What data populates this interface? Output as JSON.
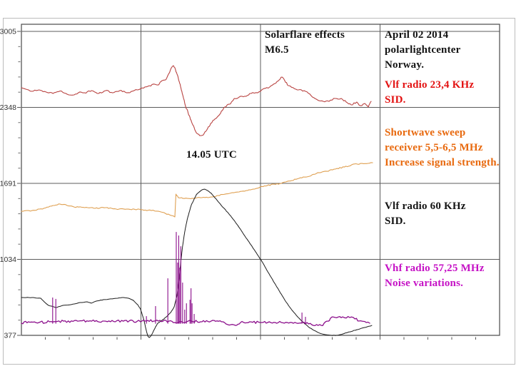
{
  "frame": {
    "border_color": "#bcbcbc"
  },
  "annotations": {
    "solarflare": {
      "line1": "Solarflare effects",
      "line2": "M6.5",
      "color": "#141414"
    },
    "date_location": {
      "line1": "April 02 2014",
      "line2": "polarlightcenter",
      "line3": "Norway.",
      "color": "#141414"
    },
    "utc_time": {
      "text": "14.05 UTC",
      "color": "#141414"
    }
  },
  "legend": {
    "vlf234": {
      "line1": "Vlf radio 23,4 KHz",
      "line2": "SID.",
      "color": "#e31212"
    },
    "shortwave": {
      "line1": "Shortwave sweep",
      "line2": "receiver 5,5-6,5 MHz",
      "line3": "Increase signal strength.",
      "color": "#e8690e"
    },
    "vlf60": {
      "line1": "Vlf radio 60 KHz",
      "line2": "SID.",
      "color": "#141414"
    },
    "vhf": {
      "line1": "Vhf radio 57,25 MHz",
      "line2": "Noise variations.",
      "color": "#c511c5"
    }
  },
  "chart_data": {
    "type": "line",
    "title": "Solarflare effects M6.5 — April 02 2014, polarlightcenter Norway",
    "event_time": "14.05 UTC",
    "grid": {
      "color": "#5c5c5c",
      "box_color": "#4a4a4a",
      "vertical_major_fractions": [
        0.25,
        0.5,
        0.75
      ],
      "x_minor_step_fraction": 0.05
    },
    "y_axis": {
      "range": [
        377,
        3005
      ],
      "ticks": [
        3005,
        2348,
        1691,
        1034,
        377
      ],
      "minor_divisions": 5,
      "label_color": "#333333"
    },
    "x_axis": {
      "tick_labels": [],
      "note": "time of day, unlabeled minor ticks every 5% of span"
    },
    "series": [
      {
        "id": "vlf234",
        "name": "Vlf radio 23,4 KHz SID",
        "color": "#b94442",
        "width": 1.1,
        "noise": 1.1,
        "seed": 11,
        "points": [
          [
            0,
            2518
          ],
          [
            2,
            2500
          ],
          [
            3,
            2487
          ],
          [
            5,
            2499
          ],
          [
            7,
            2481
          ],
          [
            9,
            2468
          ],
          [
            11,
            2490
          ],
          [
            13,
            2462
          ],
          [
            15,
            2456
          ],
          [
            17,
            2480
          ],
          [
            18,
            2474
          ],
          [
            20,
            2493
          ],
          [
            22,
            2468
          ],
          [
            24,
            2493
          ],
          [
            26,
            2474
          ],
          [
            28,
            2493
          ],
          [
            30,
            2474
          ],
          [
            33,
            2499
          ],
          [
            34,
            2511
          ],
          [
            36,
            2530
          ],
          [
            38,
            2548
          ],
          [
            39,
            2542
          ],
          [
            40,
            2579
          ],
          [
            41,
            2585
          ],
          [
            42,
            2641
          ],
          [
            42.7,
            2690
          ],
          [
            43.3,
            2709
          ],
          [
            43.9,
            2672
          ],
          [
            44.7,
            2598
          ],
          [
            45.7,
            2487
          ],
          [
            46.7,
            2363
          ],
          [
            47.8,
            2277
          ],
          [
            48.8,
            2197
          ],
          [
            49.8,
            2129
          ],
          [
            50.8,
            2104
          ],
          [
            51.8,
            2110
          ],
          [
            52.8,
            2153
          ],
          [
            53.9,
            2209
          ],
          [
            54.9,
            2240
          ],
          [
            56.5,
            2289
          ],
          [
            57.9,
            2351
          ],
          [
            59.3,
            2376
          ],
          [
            60.6,
            2425
          ],
          [
            62,
            2437
          ],
          [
            64,
            2444
          ],
          [
            65.4,
            2468
          ],
          [
            67.3,
            2474
          ],
          [
            69.1,
            2511
          ],
          [
            70.7,
            2524
          ],
          [
            72.2,
            2554
          ],
          [
            73.4,
            2585
          ],
          [
            74.2,
            2610
          ],
          [
            75,
            2579
          ],
          [
            76,
            2536
          ],
          [
            77.4,
            2518
          ],
          [
            78.9,
            2499
          ],
          [
            80.9,
            2487
          ],
          [
            82.5,
            2450
          ],
          [
            84.3,
            2413
          ],
          [
            86,
            2400
          ],
          [
            87.6,
            2400
          ],
          [
            89.4,
            2425
          ],
          [
            91.1,
            2425
          ],
          [
            92.5,
            2394
          ],
          [
            93.9,
            2370
          ],
          [
            95.5,
            2394
          ],
          [
            96.5,
            2363
          ],
          [
            97.8,
            2382
          ],
          [
            98.8,
            2351
          ],
          [
            99.6,
            2400
          ]
        ]
      },
      {
        "id": "shortwave",
        "name": "Shortwave sweep receiver 5,5-6,5 MHz",
        "color": "#dfa052",
        "width": 1.1,
        "noise": 0.8,
        "seed": 22,
        "points": [
          [
            0,
            1450
          ],
          [
            3,
            1456
          ],
          [
            6,
            1469
          ],
          [
            9,
            1500
          ],
          [
            11,
            1512
          ],
          [
            13,
            1500
          ],
          [
            15,
            1487
          ],
          [
            18,
            1481
          ],
          [
            21,
            1475
          ],
          [
            24,
            1481
          ],
          [
            27,
            1469
          ],
          [
            30,
            1469
          ],
          [
            34,
            1463
          ],
          [
            37,
            1456
          ],
          [
            39,
            1450
          ],
          [
            41,
            1431
          ],
          [
            42.7,
            1413
          ],
          [
            43.7,
            1401
          ],
          [
            44,
            1598
          ],
          [
            44.7,
            1567
          ],
          [
            46,
            1561
          ],
          [
            49,
            1561
          ],
          [
            51,
            1567
          ],
          [
            54,
            1573
          ],
          [
            56,
            1586
          ],
          [
            58,
            1598
          ],
          [
            60,
            1611
          ],
          [
            62,
            1617
          ],
          [
            64,
            1629
          ],
          [
            66,
            1641
          ],
          [
            68,
            1660
          ],
          [
            70,
            1672
          ],
          [
            72,
            1684
          ],
          [
            74,
            1691
          ],
          [
            77,
            1715
          ],
          [
            79,
            1734
          ],
          [
            82,
            1752
          ],
          [
            84,
            1777
          ],
          [
            87,
            1795
          ],
          [
            89,
            1814
          ],
          [
            92,
            1832
          ],
          [
            94,
            1851
          ],
          [
            97,
            1863
          ],
          [
            100,
            1869
          ]
        ]
      },
      {
        "id": "vlf60",
        "name": "Vlf radio 60 KHz SID",
        "color": "#1c1c1c",
        "width": 1.0,
        "noise": 0.3,
        "seed": 33,
        "points": [
          [
            0,
            704
          ],
          [
            3,
            704
          ],
          [
            5.5,
            698
          ],
          [
            6.5,
            667
          ],
          [
            7.7,
            636
          ],
          [
            9.8,
            617
          ],
          [
            11.8,
            636
          ],
          [
            14.2,
            643
          ],
          [
            16.7,
            661
          ],
          [
            18.7,
            667
          ],
          [
            19.9,
            655
          ],
          [
            21.3,
            673
          ],
          [
            23.4,
            686
          ],
          [
            25.4,
            692
          ],
          [
            27.4,
            698
          ],
          [
            29.1,
            704
          ],
          [
            30.5,
            698
          ],
          [
            31.9,
            679
          ],
          [
            33.1,
            642
          ],
          [
            33.9,
            606
          ],
          [
            34.8,
            519
          ],
          [
            35.4,
            439
          ],
          [
            36,
            371
          ],
          [
            36.4,
            358
          ],
          [
            37,
            377
          ],
          [
            37.8,
            426
          ],
          [
            38.8,
            481
          ],
          [
            40,
            506
          ],
          [
            41.3,
            537
          ],
          [
            42.5,
            574
          ],
          [
            43.5,
            623
          ],
          [
            44.3,
            722
          ],
          [
            44.7,
            808
          ],
          [
            45.1,
            919
          ],
          [
            45.5,
            1043
          ],
          [
            45.9,
            1147
          ],
          [
            46.5,
            1271
          ],
          [
            47.2,
            1376
          ],
          [
            47.8,
            1444
          ],
          [
            48.4,
            1505
          ],
          [
            49,
            1542
          ],
          [
            49.8,
            1592
          ],
          [
            50.6,
            1616
          ],
          [
            51.4,
            1635
          ],
          [
            52.2,
            1641
          ],
          [
            53,
            1629
          ],
          [
            54.1,
            1604
          ],
          [
            55.1,
            1567
          ],
          [
            56.3,
            1524
          ],
          [
            57.5,
            1481
          ],
          [
            59,
            1431
          ],
          [
            60.6,
            1370
          ],
          [
            62.2,
            1302
          ],
          [
            63.8,
            1228
          ],
          [
            65.5,
            1154
          ],
          [
            67.1,
            1080
          ],
          [
            68.7,
            1006
          ],
          [
            70.3,
            920
          ],
          [
            72,
            833
          ],
          [
            73.6,
            753
          ],
          [
            75.2,
            673
          ],
          [
            76.8,
            605
          ],
          [
            78.5,
            543
          ],
          [
            80.1,
            494
          ],
          [
            81.7,
            451
          ],
          [
            83.3,
            420
          ],
          [
            85,
            395
          ],
          [
            86.6,
            383
          ],
          [
            88.2,
            377
          ],
          [
            89.8,
            377
          ],
          [
            91.5,
            389
          ],
          [
            93.5,
            407
          ],
          [
            95.5,
            426
          ],
          [
            97.6,
            444
          ],
          [
            99.8,
            463
          ]
        ]
      },
      {
        "id": "vhf",
        "name": "Vhf radio 57,25 MHz noise",
        "color": "#8b0e8b",
        "width": 1.3,
        "noise": 1.7,
        "seed": 44,
        "points": [
          [
            0,
            482
          ],
          [
            2,
            494
          ],
          [
            5,
            488
          ],
          [
            8,
            494
          ],
          [
            12,
            500
          ],
          [
            16,
            500
          ],
          [
            20,
            500
          ],
          [
            24,
            500
          ],
          [
            29,
            500
          ],
          [
            33,
            500
          ],
          [
            36,
            506
          ],
          [
            39,
            500
          ],
          [
            42,
            500
          ],
          [
            43.7,
            488
          ],
          [
            45,
            494
          ],
          [
            46,
            488
          ],
          [
            47,
            494
          ],
          [
            48.4,
            500
          ],
          [
            51,
            494
          ],
          [
            54,
            500
          ],
          [
            57,
            494
          ],
          [
            59.6,
            469
          ],
          [
            61,
            463
          ],
          [
            62.4,
            488
          ],
          [
            65,
            494
          ],
          [
            68,
            488
          ],
          [
            71,
            488
          ],
          [
            74,
            488
          ],
          [
            77,
            488
          ],
          [
            80,
            488
          ],
          [
            82.7,
            469
          ],
          [
            85.4,
            463
          ],
          [
            87.4,
            500
          ],
          [
            88,
            525
          ],
          [
            89.4,
            531
          ],
          [
            91.5,
            537
          ],
          [
            93.5,
            531
          ],
          [
            95,
            519
          ],
          [
            97,
            500
          ],
          [
            98.2,
            488
          ],
          [
            99.2,
            482
          ]
        ],
        "spike_base_value": 478,
        "spikes": [
          [
            8.9,
            704
          ],
          [
            9.8,
            692
          ],
          [
            35.6,
            543
          ],
          [
            38.2,
            630
          ],
          [
            41.7,
            870
          ],
          [
            44.1,
            1271
          ],
          [
            44.5,
            1006
          ],
          [
            44.8,
            1240
          ],
          [
            45.1,
            962
          ],
          [
            45.4,
            1147
          ],
          [
            45.9,
            833
          ],
          [
            46.5,
            599
          ],
          [
            47,
            654
          ],
          [
            48,
            685
          ],
          [
            48.3,
            784
          ],
          [
            48.6,
            654
          ],
          [
            49.2,
            562
          ],
          [
            79.9,
            574
          ],
          [
            80.9,
            537
          ]
        ]
      }
    ]
  }
}
